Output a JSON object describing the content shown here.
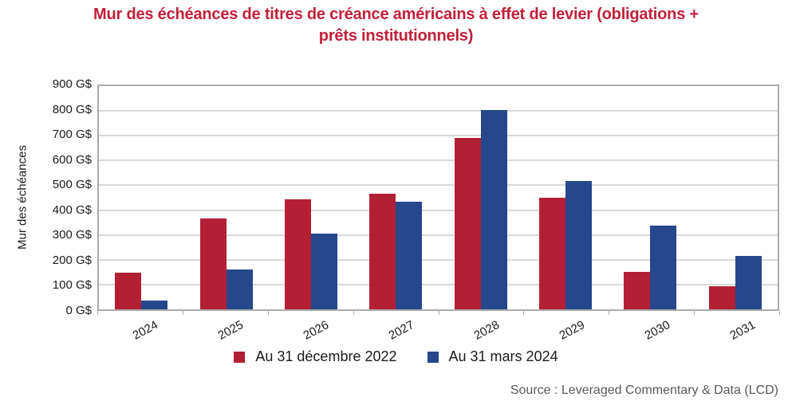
{
  "title": {
    "line1": "Mur des échéances de titres de créance américains à effet de levier (obligations +",
    "line2": "prêts institutionnels)"
  },
  "y_axis": {
    "label": "Mur des échéances",
    "tick_labels": [
      "900 G$",
      "800 G$",
      "700 G$",
      "600 G$",
      "500 G$",
      "400 G$",
      "300 G$",
      "200 G$",
      "100 G$",
      "0 G$"
    ]
  },
  "source": "Source : Leveraged Commentary & Data (LCD)",
  "chart_data": {
    "type": "bar",
    "categories": [
      "2024",
      "2025",
      "2026",
      "2027",
      "2028",
      "2029",
      "2030",
      "2031"
    ],
    "series": [
      {
        "name": "Au 31 décembre 2022",
        "color": "#B32036",
        "values": [
          147,
          368,
          445,
          465,
          692,
          450,
          152,
          92
        ]
      },
      {
        "name": "Au 31 mars 2024",
        "color": "#26478C",
        "values": [
          37,
          160,
          306,
          434,
          805,
          516,
          338,
          217
        ]
      }
    ],
    "title": "Mur des échéances de titres de créance américains à effet de levier (obligations + prêts institutionnels)",
    "xlabel": "",
    "ylabel": "Mur des échéances",
    "y_unit": "G$",
    "ylim": [
      0,
      900
    ],
    "y_tick_step": 100,
    "grid": true,
    "legend_position": "bottom"
  },
  "colors": {
    "title_text": "#C12038",
    "series_dec2022": "#B32036",
    "series_mars2024": "#26478C",
    "gridline": "#D9D9D9",
    "plot_border": "#ACACAC",
    "axis_text": "#1a1a1a",
    "source_text": "#58595B"
  }
}
